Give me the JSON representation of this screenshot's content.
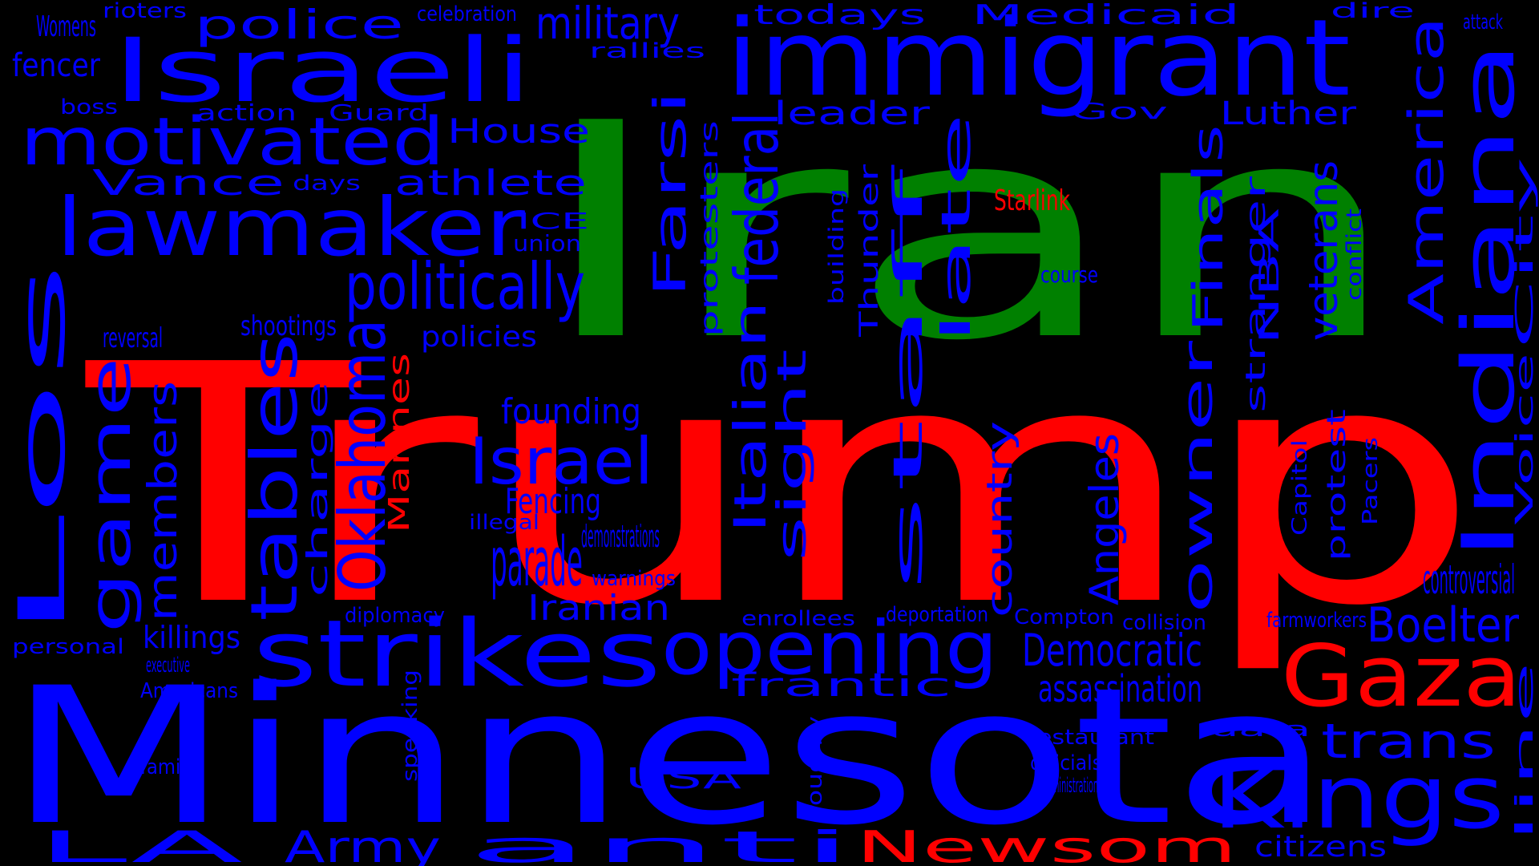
{
  "colors": {
    "background": "#000000",
    "blue": "#0000ff",
    "red": "#ff0000",
    "green": "#008000"
  },
  "words": [
    {
      "id": "trump",
      "text": "Trump",
      "color": "red"
    },
    {
      "id": "iran",
      "text": "Iran",
      "color": "green"
    },
    {
      "id": "minnesota",
      "text": "Minnesota",
      "color": "blue"
    },
    {
      "id": "immigrant",
      "text": "immigrant",
      "color": "blue"
    },
    {
      "id": "israeli",
      "text": "Israeli",
      "color": "blue"
    },
    {
      "id": "lawmaker",
      "text": "lawmaker",
      "color": "blue"
    },
    {
      "id": "motivated",
      "text": "motivated",
      "color": "blue"
    },
    {
      "id": "strikes",
      "text": "strikes",
      "color": "blue"
    },
    {
      "id": "opening",
      "text": "opening",
      "color": "blue"
    },
    {
      "id": "kings",
      "text": "Kings",
      "color": "blue"
    },
    {
      "id": "gaza",
      "text": "Gaza",
      "color": "red"
    },
    {
      "id": "politically",
      "text": "politically",
      "color": "blue"
    },
    {
      "id": "israel",
      "text": "Israel",
      "color": "blue"
    },
    {
      "id": "parade",
      "text": "parade",
      "color": "blue"
    },
    {
      "id": "police",
      "text": "police",
      "color": "blue"
    },
    {
      "id": "military",
      "text": "military",
      "color": "blue"
    },
    {
      "id": "newsom",
      "text": "Newsom",
      "color": "red"
    },
    {
      "id": "anti",
      "text": "anti",
      "color": "blue"
    },
    {
      "id": "army",
      "text": "Army",
      "color": "blue"
    },
    {
      "id": "la",
      "text": "LA",
      "color": "blue"
    },
    {
      "id": "boelter",
      "text": "Boelter",
      "color": "blue"
    },
    {
      "id": "trans",
      "text": "trans",
      "color": "blue"
    },
    {
      "id": "democratic",
      "text": "Democratic",
      "color": "blue"
    },
    {
      "id": "assassination",
      "text": "assassination",
      "color": "blue"
    },
    {
      "id": "controversial",
      "text": "controversial",
      "color": "blue"
    },
    {
      "id": "vance",
      "text": "Vance",
      "color": "blue"
    },
    {
      "id": "athlete",
      "text": "athlete",
      "color": "blue"
    },
    {
      "id": "house",
      "text": "House",
      "color": "blue"
    },
    {
      "id": "leader",
      "text": "leader",
      "color": "blue"
    },
    {
      "id": "luther",
      "text": "Luther",
      "color": "blue"
    },
    {
      "id": "frantic",
      "text": "frantic",
      "color": "blue"
    },
    {
      "id": "founding",
      "text": "founding",
      "color": "blue"
    },
    {
      "id": "fencing",
      "text": "Fencing",
      "color": "blue"
    },
    {
      "id": "iranian",
      "text": "Iranian",
      "color": "blue"
    },
    {
      "id": "demonstrations",
      "text": "demonstrations",
      "color": "blue"
    },
    {
      "id": "policies",
      "text": "policies",
      "color": "blue"
    },
    {
      "id": "shootings",
      "text": "shootings",
      "color": "blue"
    },
    {
      "id": "reversal",
      "text": "reversal",
      "color": "blue"
    },
    {
      "id": "fencer",
      "text": "fencer",
      "color": "blue"
    },
    {
      "id": "womens",
      "text": "Womens",
      "color": "blue"
    },
    {
      "id": "killings",
      "text": "killings",
      "color": "blue"
    },
    {
      "id": "usa",
      "text": "USA",
      "color": "blue"
    },
    {
      "id": "citizens",
      "text": "citizens",
      "color": "blue"
    },
    {
      "id": "starlink",
      "text": "Starlink",
      "color": "red"
    },
    {
      "id": "todays",
      "text": "todays",
      "color": "blue"
    },
    {
      "id": "medicaid",
      "text": "Medicaid",
      "color": "blue"
    },
    {
      "id": "rioters",
      "text": "rioters",
      "color": "blue"
    },
    {
      "id": "celebration",
      "text": "celebration",
      "color": "blue"
    },
    {
      "id": "rallies",
      "text": "rallies",
      "color": "blue"
    },
    {
      "id": "dire",
      "text": "dire",
      "color": "blue"
    },
    {
      "id": "attack",
      "text": "attack",
      "color": "blue"
    },
    {
      "id": "boss",
      "text": "boss",
      "color": "blue"
    },
    {
      "id": "action",
      "text": "action",
      "color": "blue"
    },
    {
      "id": "guard",
      "text": "Guard",
      "color": "blue"
    },
    {
      "id": "gov",
      "text": "Gov",
      "color": "blue"
    },
    {
      "id": "days",
      "text": "days",
      "color": "blue"
    },
    {
      "id": "ice",
      "text": "ICE",
      "color": "blue"
    },
    {
      "id": "union",
      "text": "union",
      "color": "blue"
    },
    {
      "id": "course",
      "text": "course",
      "color": "blue"
    },
    {
      "id": "illegal",
      "text": "illegal",
      "color": "blue"
    },
    {
      "id": "warnings",
      "text": "warnings",
      "color": "blue"
    },
    {
      "id": "diplomacy",
      "text": "diplomacy",
      "color": "blue"
    },
    {
      "id": "enrollees",
      "text": "enrollees",
      "color": "blue"
    },
    {
      "id": "deportation",
      "text": "deportation",
      "color": "blue"
    },
    {
      "id": "compton",
      "text": "Compton",
      "color": "blue"
    },
    {
      "id": "collision",
      "text": "collision",
      "color": "blue"
    },
    {
      "id": "farmworkers",
      "text": "farmworkers",
      "color": "blue"
    },
    {
      "id": "personal",
      "text": "personal",
      "color": "blue"
    },
    {
      "id": "executive",
      "text": "executive",
      "color": "blue"
    },
    {
      "id": "americans",
      "text": "Americans",
      "color": "blue"
    },
    {
      "id": "restaurant",
      "text": "restaurant",
      "color": "blue"
    },
    {
      "id": "data",
      "text": "data",
      "color": "blue"
    },
    {
      "id": "officials",
      "text": "officials",
      "color": "blue"
    },
    {
      "id": "administration",
      "text": "administration",
      "color": "blue"
    },
    {
      "id": "family",
      "text": "family",
      "color": "blue"
    },
    {
      "id": "indiana",
      "text": "Indiana",
      "color": "blue"
    },
    {
      "id": "oklahoma",
      "text": "Oklahoma",
      "color": "blue"
    },
    {
      "id": "tables",
      "text": "tables",
      "color": "blue"
    },
    {
      "id": "los",
      "text": "Los",
      "color": "blue"
    },
    {
      "id": "game",
      "text": "game",
      "color": "blue"
    },
    {
      "id": "federal",
      "text": "federal",
      "color": "blue"
    },
    {
      "id": "america",
      "text": "America",
      "color": "blue"
    },
    {
      "id": "italian",
      "text": "Italian",
      "color": "blue"
    },
    {
      "id": "farsi",
      "text": "Farsi",
      "color": "blue"
    },
    {
      "id": "sight",
      "text": "sight",
      "color": "blue"
    },
    {
      "id": "staff",
      "text": "staff",
      "color": "blue"
    },
    {
      "id": "late",
      "text": "late",
      "color": "blue"
    },
    {
      "id": "owner",
      "text": "owner",
      "color": "blue"
    },
    {
      "id": "finals",
      "text": "Finals",
      "color": "blue"
    },
    {
      "id": "angeles",
      "text": "Angeles",
      "color": "blue"
    },
    {
      "id": "veterans",
      "text": "veterans",
      "color": "blue"
    },
    {
      "id": "members",
      "text": "members",
      "color": "blue"
    },
    {
      "id": "country",
      "text": "country",
      "color": "blue"
    },
    {
      "id": "charge",
      "text": "charge",
      "color": "blue"
    },
    {
      "id": "marines",
      "text": "Marines",
      "color": "red"
    },
    {
      "id": "stranger",
      "text": "stranger",
      "color": "blue"
    },
    {
      "id": "nba",
      "text": "NBA",
      "color": "blue"
    },
    {
      "id": "thunder",
      "text": "Thunder",
      "color": "blue"
    },
    {
      "id": "protesters",
      "text": "protesters",
      "color": "blue"
    },
    {
      "id": "protest",
      "text": "protest",
      "color": "blue"
    },
    {
      "id": "voice",
      "text": "Voice",
      "color": "blue"
    },
    {
      "id": "city",
      "text": "City",
      "color": "blue"
    },
    {
      "id": "line",
      "text": "line",
      "color": "blue"
    },
    {
      "id": "speaking",
      "text": "speaking",
      "color": "blue"
    },
    {
      "id": "roughly",
      "text": "roughly",
      "color": "blue"
    },
    {
      "id": "building",
      "text": "building",
      "color": "blue"
    },
    {
      "id": "conflict",
      "text": "conflict",
      "color": "blue"
    },
    {
      "id": "capitol",
      "text": "Capitol",
      "color": "blue"
    },
    {
      "id": "pacers",
      "text": "Pacers",
      "color": "blue"
    }
  ]
}
